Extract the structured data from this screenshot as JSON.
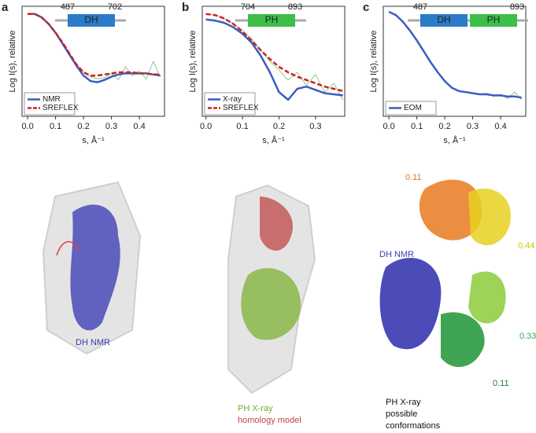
{
  "chart_data": [
    {
      "type": "line",
      "panel": "a",
      "xlabel": "s, Å⁻¹",
      "ylabel": "Log I(s), relative",
      "x": [
        0,
        0.025,
        0.05,
        0.075,
        0.1,
        0.125,
        0.15,
        0.175,
        0.2,
        0.225,
        0.25,
        0.275,
        0.3,
        0.325,
        0.35,
        0.375,
        0.4,
        0.425,
        0.45,
        0.475
      ],
      "xlim": [
        -0.02,
        0.49
      ],
      "ylim": [
        0,
        1
      ],
      "xticks": [
        {
          "value": 0,
          "label": "0.0"
        },
        0.1,
        0.2,
        0.3,
        0.4
      ],
      "legend": "lower left",
      "series": [
        {
          "color": "#8cc88c",
          "values": [
            0.93,
            0.93,
            0.9,
            0.84,
            0.76,
            0.67,
            0.57,
            0.47,
            0.4,
            0.36,
            0.34,
            0.35,
            0.39,
            0.33,
            0.45,
            0.37,
            0.41,
            0.34,
            0.5,
            0.36
          ]
        },
        {
          "name": "NMR",
          "color": "#3d5cc0",
          "values": [
            0.93,
            0.93,
            0.9,
            0.84,
            0.76,
            0.66,
            0.56,
            0.46,
            0.37,
            0.32,
            0.31,
            0.33,
            0.36,
            0.38,
            0.39,
            0.39,
            0.39,
            0.39,
            0.38,
            0.37
          ]
        },
        {
          "name": "SREFLEX",
          "color": "#cc2222",
          "dash": true,
          "values": [
            0.93,
            0.93,
            0.9,
            0.84,
            0.76,
            0.67,
            0.57,
            0.47,
            0.4,
            0.37,
            0.37,
            0.38,
            0.39,
            0.4,
            0.4,
            0.4,
            0.39,
            0.39,
            0.38,
            0.38
          ]
        }
      ],
      "domains": {
        "start": 487,
        "end": 702,
        "blocks": [
          {
            "label": "DH",
            "color": "#2a7cc7"
          }
        ]
      }
    },
    {
      "type": "line",
      "panel": "b",
      "xlabel": "s, Å⁻¹",
      "ylabel": "Log I(s), relative",
      "x": [
        0,
        0.025,
        0.05,
        0.075,
        0.1,
        0.125,
        0.15,
        0.175,
        0.2,
        0.225,
        0.25,
        0.275,
        0.3,
        0.325,
        0.35,
        0.375
      ],
      "xlim": [
        -0.01,
        0.38
      ],
      "ylim": [
        0,
        1
      ],
      "xticks": [
        {
          "value": 0,
          "label": "0.0"
        },
        0.1,
        0.2,
        0.3
      ],
      "legend": "lower left",
      "series": [
        {
          "color": "#8cc88c",
          "values": [
            0.93,
            0.92,
            0.89,
            0.84,
            0.78,
            0.7,
            0.6,
            0.5,
            0.42,
            0.33,
            0.4,
            0.28,
            0.38,
            0.22,
            0.3,
            0.15
          ]
        },
        {
          "name": "X-ray",
          "color": "#3d5cc0",
          "values": [
            0.88,
            0.87,
            0.85,
            0.81,
            0.75,
            0.67,
            0.55,
            0.4,
            0.22,
            0.15,
            0.25,
            0.27,
            0.24,
            0.21,
            0.2,
            0.19
          ]
        },
        {
          "name": "SREFLEX",
          "color": "#cc2222",
          "dash": true,
          "values": [
            0.93,
            0.92,
            0.89,
            0.84,
            0.77,
            0.69,
            0.6,
            0.52,
            0.45,
            0.4,
            0.36,
            0.33,
            0.3,
            0.27,
            0.25,
            0.23
          ]
        }
      ],
      "domains": {
        "start": 704,
        "end": 893,
        "blocks": [
          {
            "label": "PH",
            "color": "#3cbf4a"
          }
        ]
      }
    },
    {
      "type": "line",
      "panel": "c",
      "xlabel": "s, Å⁻¹",
      "ylabel": "Log I(s), relative",
      "x": [
        0,
        0.025,
        0.05,
        0.075,
        0.1,
        0.125,
        0.15,
        0.175,
        0.2,
        0.225,
        0.25,
        0.275,
        0.3,
        0.325,
        0.35,
        0.375,
        0.4,
        0.425,
        0.45,
        0.475
      ],
      "xlim": [
        -0.02,
        0.49
      ],
      "ylim": [
        0,
        1
      ],
      "xticks": [
        {
          "value": 0,
          "label": "0.0"
        },
        0.1,
        0.2,
        0.3,
        0.4
      ],
      "legend": "lower left",
      "series": [
        {
          "color": "#8cc88c",
          "values": [
            0.95,
            0.92,
            0.86,
            0.78,
            0.69,
            0.59,
            0.49,
            0.4,
            0.32,
            0.26,
            0.23,
            0.22,
            0.21,
            0.2,
            0.21,
            0.18,
            0.2,
            0.16,
            0.22,
            0.15
          ]
        },
        {
          "name": "EOM",
          "color": "#3d5cc0",
          "values": [
            0.95,
            0.92,
            0.86,
            0.78,
            0.69,
            0.59,
            0.49,
            0.4,
            0.32,
            0.26,
            0.23,
            0.22,
            0.21,
            0.2,
            0.2,
            0.19,
            0.19,
            0.18,
            0.18,
            0.17
          ]
        }
      ],
      "domains": {
        "start": 487,
        "end": 893,
        "blocks": [
          {
            "label": "DH",
            "color": "#2a7cc7"
          },
          {
            "label": "PH",
            "color": "#3cbf4a"
          }
        ]
      }
    }
  ],
  "structure_labels": [
    {
      "text": "DH NMR",
      "color": "#3b3bb5"
    },
    {
      "text": "PH X-ray",
      "color": "#6aaa2a"
    },
    {
      "text": "homology model",
      "color": "#c0444a"
    },
    {
      "text": "0.11",
      "color": "#e07a1a"
    },
    {
      "text": "0.44",
      "color": "#d8c400"
    },
    {
      "text": "DH NMR",
      "color": "#3b3bb5"
    },
    {
      "text": "0.33",
      "color": "#3aaa55"
    },
    {
      "text": "0.11",
      "color": "#1e7a30"
    },
    {
      "text": "PH X-ray",
      "color": "#111111"
    },
    {
      "text": "possible",
      "color": "#111111"
    },
    {
      "text": "conformations",
      "color": "#111111"
    }
  ]
}
